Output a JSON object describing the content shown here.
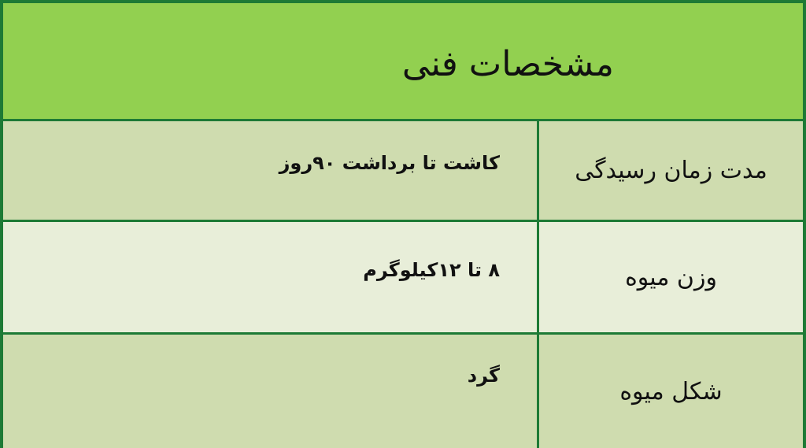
{
  "title": "مشخصات فنی",
  "rows": [
    {
      "label": "مدت زمان رسیدگی",
      "value": "کاشت تا برداشت ۹۰روز"
    },
    {
      "label": "وزن میوه",
      "value": "۸ تا ۱۲کیلوگرم"
    },
    {
      "label": "شکل میوه",
      "value": "گرد"
    }
  ],
  "colors": {
    "header": "#92d050",
    "row_dark": "#cfdcaf",
    "row_light": "#e8eed9",
    "border": "#1d7a35"
  }
}
